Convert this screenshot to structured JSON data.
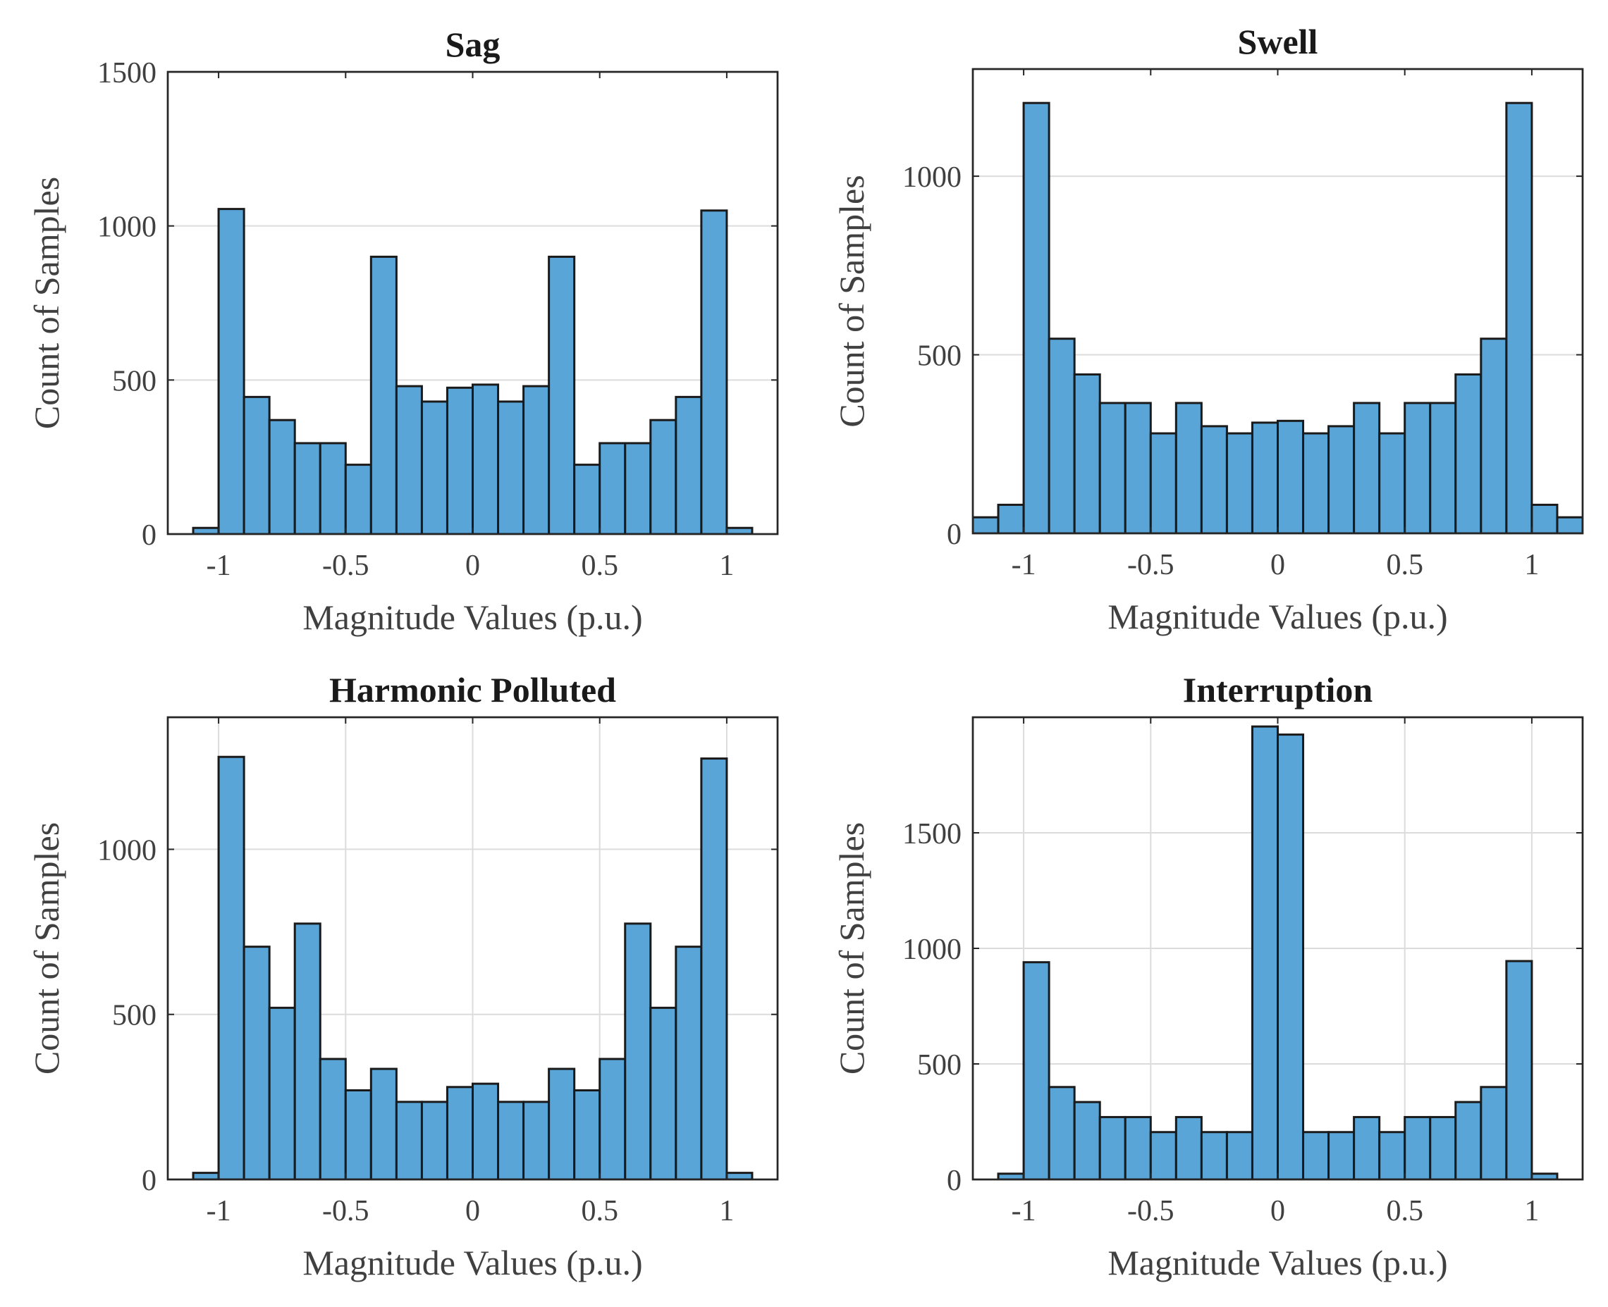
{
  "figure": {
    "bar_color": "#5aa5d8",
    "edge_color": "#1a1a1a"
  },
  "chart_data": [
    {
      "type": "bar",
      "title": "Sag",
      "xlabel": "Magnitude Values (p.u.)",
      "ylabel": "Count of Samples",
      "xlim": [
        -1.2,
        1.2
      ],
      "ylim": [
        0,
        1500
      ],
      "grid": "horizontal",
      "xticks": [
        -1,
        -0.5,
        0,
        0.5,
        1
      ],
      "xtick_labels": [
        "-1",
        "-0.5",
        "0",
        "0.5",
        "1"
      ],
      "yticks": [
        0,
        500,
        1000,
        1500
      ],
      "ytick_labels": [
        "0",
        "500",
        "1000",
        "1500"
      ],
      "bin_start": -1.1,
      "bin_width": 0.1,
      "values": [
        20,
        1055,
        445,
        370,
        295,
        295,
        225,
        900,
        480,
        430,
        475,
        485,
        430,
        480,
        900,
        225,
        295,
        295,
        370,
        445,
        1050,
        20
      ]
    },
    {
      "type": "bar",
      "title": "Swell",
      "xlabel": "Magnitude Values (p.u.)",
      "ylabel": "Count of Samples",
      "xlim": [
        -1.2,
        1.2
      ],
      "ylim": [
        0,
        1300
      ],
      "grid": "horizontal",
      "xticks": [
        -1,
        -0.5,
        0,
        0.5,
        1
      ],
      "xtick_labels": [
        "-1",
        "-0.5",
        "0",
        "0.5",
        "1"
      ],
      "yticks": [
        0,
        500,
        1000
      ],
      "ytick_labels": [
        "0",
        "500",
        "1000"
      ],
      "bin_start": -1.2,
      "bin_width": 0.1,
      "values": [
        45,
        80,
        1205,
        545,
        445,
        365,
        365,
        280,
        365,
        300,
        280,
        310,
        315,
        280,
        300,
        365,
        280,
        365,
        365,
        445,
        545,
        1205,
        80,
        45
      ]
    },
    {
      "type": "bar",
      "title": "Harmonic Polluted",
      "xlabel": "Magnitude Values (p.u.)",
      "ylabel": "Count of Samples",
      "xlim": [
        -1.2,
        1.2
      ],
      "ylim": [
        0,
        1400
      ],
      "grid": "both",
      "xticks": [
        -1,
        -0.5,
        0,
        0.5,
        1
      ],
      "xtick_labels": [
        "-1",
        "-0.5",
        "0",
        "0.5",
        "1"
      ],
      "yticks": [
        0,
        500,
        1000
      ],
      "ytick_labels": [
        "0",
        "500",
        "1000"
      ],
      "bin_start": -1.1,
      "bin_width": 0.1,
      "values": [
        20,
        1280,
        705,
        520,
        775,
        365,
        270,
        335,
        235,
        235,
        280,
        290,
        235,
        235,
        335,
        270,
        365,
        775,
        520,
        705,
        1275,
        20
      ]
    },
    {
      "type": "bar",
      "title": "Interruption",
      "xlabel": "Magnitude Values (p.u.)",
      "ylabel": "Count of Samples",
      "xlim": [
        -1.2,
        1.2
      ],
      "ylim": [
        0,
        2000
      ],
      "grid": "both",
      "xticks": [
        -1,
        -0.5,
        0,
        0.5,
        1
      ],
      "xtick_labels": [
        "-1",
        "-0.5",
        "0",
        "0.5",
        "1"
      ],
      "yticks": [
        0,
        500,
        1000,
        1500
      ],
      "ytick_labels": [
        "0",
        "500",
        "1000",
        "1500"
      ],
      "bin_start": -1.1,
      "bin_width": 0.1,
      "values": [
        25,
        940,
        400,
        335,
        270,
        270,
        205,
        270,
        205,
        205,
        1960,
        1925,
        205,
        205,
        270,
        205,
        270,
        270,
        335,
        400,
        945,
        25
      ]
    }
  ]
}
